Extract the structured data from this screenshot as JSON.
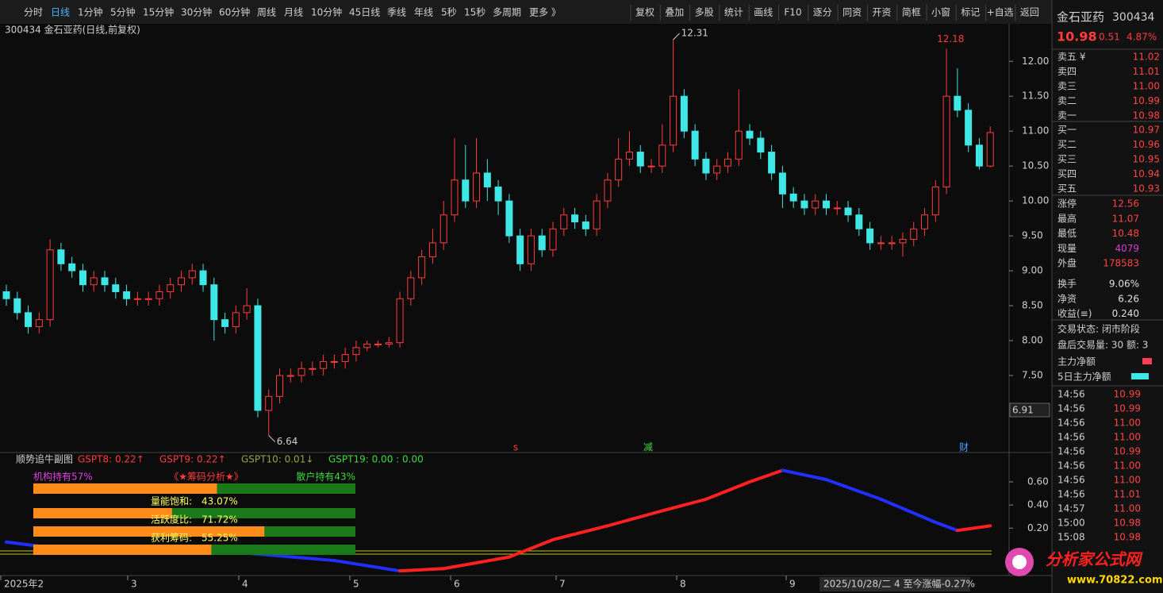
{
  "toolbar": {
    "left": [
      "分时",
      "日线",
      "1分钟",
      "5分钟",
      "15分钟",
      "30分钟",
      "60分钟",
      "周线",
      "月线",
      "10分钟",
      "45日线",
      "季线",
      "年线",
      "5秒",
      "15秒",
      "多周期",
      "更多 》"
    ],
    "active": "日线",
    "right": [
      "复权",
      "叠加",
      "多股",
      "统计",
      "画线",
      "F10",
      "逐分",
      "同资",
      "开资",
      "简框",
      "小窗",
      "标记",
      "+自选",
      "返回"
    ]
  },
  "quote": {
    "name": "金石亚药",
    "code": "300434",
    "price": "10.98",
    "change": "0.51",
    "pct": "4.87%",
    "asks": [
      [
        "卖五 ¥",
        "11.02"
      ],
      [
        "卖四",
        "11.01"
      ],
      [
        "卖三",
        "11.00"
      ],
      [
        "卖二",
        "10.99"
      ],
      [
        "卖一",
        "10.98"
      ]
    ],
    "bids": [
      [
        "买一",
        "10.97"
      ],
      [
        "买二",
        "10.96"
      ],
      [
        "买三",
        "10.95"
      ],
      [
        "买四",
        "10.94"
      ],
      [
        "买五",
        "10.93"
      ]
    ],
    "stats": [
      [
        "涨停",
        "12.56",
        "#ff4444"
      ],
      [
        "最高",
        "11.07",
        "#ff4444"
      ],
      [
        "最低",
        "10.48",
        "#ff4444"
      ],
      [
        "现量",
        "4079",
        "#d040d0"
      ],
      [
        "外盘",
        "178583",
        "#ff4444"
      ],
      [
        "换手",
        "9.06%",
        "#e0e0e0"
      ],
      [
        "净资",
        "6.26",
        "#e0e0e0"
      ],
      [
        "收益(≡)",
        "0.240",
        "#e0e0e0"
      ]
    ],
    "status": [
      "交易状态: 闭市阶段",
      "盘后交易量: 30  额: 3"
    ],
    "flows": [
      "主力净额",
      "5日主力净额"
    ],
    "ticks": [
      [
        "14:56",
        "10.99"
      ],
      [
        "14:56",
        "10.99"
      ],
      [
        "14:56",
        "11.00"
      ],
      [
        "14:56",
        "11.00"
      ],
      [
        "14:56",
        "10.99"
      ],
      [
        "14:56",
        "11.00"
      ],
      [
        "14:56",
        "11.00"
      ],
      [
        "14:56",
        "11.01"
      ],
      [
        "14:57",
        "11.00"
      ],
      [
        "15:00",
        "10.98"
      ],
      [
        "15:08",
        "10.98"
      ]
    ]
  },
  "chart_data": {
    "type": "candlestick",
    "title": "300434 金石亚药(日线,前复权)",
    "open": [
      8.7,
      8.6,
      8.4,
      8.2,
      8.3,
      9.3,
      9.1,
      9.0,
      8.8,
      8.9,
      8.8,
      8.7,
      8.6,
      8.6,
      8.6,
      8.7,
      8.8,
      8.9,
      9.0,
      8.8,
      8.3,
      8.2,
      8.4,
      8.5,
      7.0,
      7.2,
      7.5,
      7.5,
      7.6,
      7.6,
      7.7,
      7.7,
      7.8,
      7.9,
      7.95,
      7.95,
      7.97,
      8.6,
      8.9,
      9.2,
      9.4,
      9.8,
      10.3,
      10.0,
      10.4,
      10.2,
      10.0,
      9.5,
      9.1,
      9.5,
      9.3,
      9.6,
      9.8,
      9.7,
      9.6,
      10.0,
      10.3,
      10.6,
      10.7,
      10.5,
      10.5,
      10.8,
      11.5,
      11.0,
      10.6,
      10.4,
      10.5,
      10.6,
      11.0,
      10.9,
      10.7,
      10.4,
      10.1,
      10.0,
      9.9,
      10.0,
      9.9,
      9.9,
      9.8,
      9.6,
      9.4,
      9.4,
      9.4,
      9.45,
      9.6,
      9.8,
      10.2,
      11.5,
      11.3,
      10.8,
      10.5
    ],
    "high": [
      8.8,
      8.7,
      8.5,
      8.4,
      9.45,
      9.4,
      9.2,
      9.1,
      9.0,
      9.0,
      8.9,
      8.8,
      8.7,
      8.7,
      8.8,
      8.9,
      9.0,
      9.1,
      9.1,
      8.9,
      8.4,
      8.5,
      8.75,
      8.6,
      7.3,
      7.6,
      7.6,
      7.7,
      7.7,
      7.8,
      7.8,
      7.9,
      8.0,
      8.0,
      8.0,
      8.05,
      8.7,
      9.0,
      9.3,
      9.6,
      10.0,
      10.9,
      10.8,
      10.9,
      10.6,
      10.3,
      10.1,
      9.6,
      9.6,
      9.6,
      9.7,
      9.9,
      9.9,
      9.8,
      10.1,
      10.4,
      10.9,
      11.0,
      10.8,
      10.6,
      11.1,
      12.31,
      11.6,
      11.1,
      10.7,
      10.6,
      10.7,
      11.6,
      11.1,
      11.0,
      10.8,
      10.5,
      10.2,
      10.1,
      10.1,
      10.1,
      10.0,
      10.0,
      9.9,
      9.7,
      9.5,
      9.5,
      9.55,
      9.7,
      9.9,
      10.3,
      12.18,
      11.9,
      11.4,
      10.9,
      11.07
    ],
    "low": [
      8.5,
      8.3,
      8.1,
      8.1,
      8.2,
      9.0,
      8.9,
      8.7,
      8.7,
      8.7,
      8.6,
      8.5,
      8.5,
      8.5,
      8.5,
      8.6,
      8.7,
      8.8,
      8.7,
      8.0,
      8.1,
      8.1,
      8.3,
      6.9,
      6.64,
      7.1,
      7.4,
      7.4,
      7.5,
      7.5,
      7.6,
      7.6,
      7.7,
      7.85,
      7.9,
      7.9,
      7.9,
      8.5,
      8.8,
      9.1,
      9.3,
      9.7,
      9.9,
      9.9,
      10.0,
      9.8,
      9.4,
      9.0,
      9.0,
      9.2,
      9.2,
      9.5,
      9.6,
      9.5,
      9.5,
      9.9,
      10.2,
      10.5,
      10.4,
      10.4,
      10.4,
      10.7,
      10.9,
      10.5,
      10.3,
      10.3,
      10.4,
      10.5,
      10.8,
      10.6,
      10.3,
      9.9,
      9.9,
      9.8,
      9.8,
      9.8,
      9.8,
      9.7,
      9.5,
      9.3,
      9.3,
      9.3,
      9.2,
      9.35,
      9.5,
      9.7,
      10.1,
      11.2,
      10.7,
      10.45,
      10.48
    ],
    "close": [
      8.6,
      8.4,
      8.2,
      8.3,
      9.3,
      9.1,
      9.0,
      8.8,
      8.9,
      8.8,
      8.7,
      8.6,
      8.6,
      8.6,
      8.7,
      8.8,
      8.9,
      9.0,
      8.8,
      8.3,
      8.2,
      8.4,
      8.5,
      7.0,
      7.2,
      7.5,
      7.5,
      7.6,
      7.6,
      7.7,
      7.7,
      7.8,
      7.9,
      7.95,
      7.95,
      7.97,
      8.6,
      8.9,
      9.2,
      9.4,
      9.8,
      10.3,
      10.0,
      10.4,
      10.2,
      10.0,
      9.5,
      9.1,
      9.5,
      9.3,
      9.6,
      9.8,
      9.7,
      9.6,
      10.0,
      10.3,
      10.6,
      10.7,
      10.5,
      10.5,
      10.8,
      11.5,
      11.0,
      10.6,
      10.4,
      10.5,
      10.6,
      11.0,
      10.9,
      10.7,
      10.4,
      10.1,
      10.0,
      9.9,
      10.0,
      9.9,
      9.9,
      9.8,
      9.6,
      9.4,
      9.4,
      9.4,
      9.45,
      9.6,
      9.8,
      10.2,
      11.5,
      11.3,
      10.8,
      10.5,
      10.98
    ],
    "up_color": "#ff3c3c",
    "down_color": "#3ee6e6",
    "ylim": [
      6.42,
      12.56
    ],
    "yticks": [
      {
        "value": 7.5,
        "label": "7.50"
      },
      {
        "value": 8,
        "label": "8.00"
      },
      {
        "value": 8.5,
        "label": "8.50"
      },
      {
        "value": 9,
        "label": "9.00"
      },
      {
        "value": 9.5,
        "label": "9.50"
      },
      {
        "value": 10,
        "label": "10.00"
      },
      {
        "value": 10.5,
        "label": "10.50"
      },
      {
        "value": 11,
        "label": "11.00"
      },
      {
        "value": 11.5,
        "label": "11.50"
      },
      {
        "value": 12,
        "label": "12.00"
      }
    ],
    "cursor_price": "6.91",
    "x_labels": [
      "2025年2",
      "3",
      "4",
      "5",
      "6",
      "7",
      "8",
      "9"
    ],
    "x_info": "2025/10/28/二 4 至今涨幅-0.27%",
    "signals": [
      {
        "text": "s",
        "color": "#ff3c3c"
      },
      {
        "text": "减",
        "color": "#3cdc3c"
      },
      {
        "text": "财",
        "color": "#4aa0ff"
      }
    ],
    "sub": {
      "title": "顺势追牛副图",
      "legend": [
        {
          "text": "GSPT8: 0.22↑",
          "color": "#ff3c3c"
        },
        {
          "text": "GSPT9: 0.22↑",
          "color": "#ff3c3c"
        },
        {
          "text": "GSPT10: 0.01↓",
          "color": "#a0a040"
        },
        {
          "text": "GSPT19: 0.00 : 0.00",
          "color": "#3cdc3c"
        }
      ],
      "x": [
        0,
        5,
        10,
        20,
        30,
        36,
        40,
        46,
        50,
        55,
        60,
        64,
        68,
        71,
        75,
        80,
        85,
        87,
        90
      ],
      "values": [
        0.08,
        0.02,
        -0.01,
        0.0,
        -0.08,
        -0.17,
        -0.15,
        -0.05,
        0.1,
        0.22,
        0.35,
        0.45,
        0.6,
        0.7,
        0.62,
        0.45,
        0.25,
        0.18,
        0.22
      ],
      "rise_color": "#ff2020",
      "fall_color": "#2030ff",
      "ylim": [
        -0.21,
        0.82
      ],
      "yticks": [
        {
          "value": 0.2,
          "label": "0.20"
        },
        {
          "value": 0.4,
          "label": "0.40"
        },
        {
          "value": 0.6,
          "label": "0.60"
        }
      ],
      "chips": {
        "left": "机构持有57%",
        "left_value": 57,
        "middle": "《★筹码分析★》",
        "right": "散户持有43%",
        "rows": [
          {
            "label": "量能饱和:",
            "value": 43.07,
            "value_label": "43.07%"
          },
          {
            "label": "活跃度比:",
            "value": 71.72,
            "value_label": "71.72%"
          },
          {
            "label": "获利筹码:",
            "value": 55.25,
            "value_label": "55.25%"
          }
        ]
      }
    }
  },
  "watermark": {
    "title": "分析家公式网",
    "url": "www.70822.com"
  }
}
